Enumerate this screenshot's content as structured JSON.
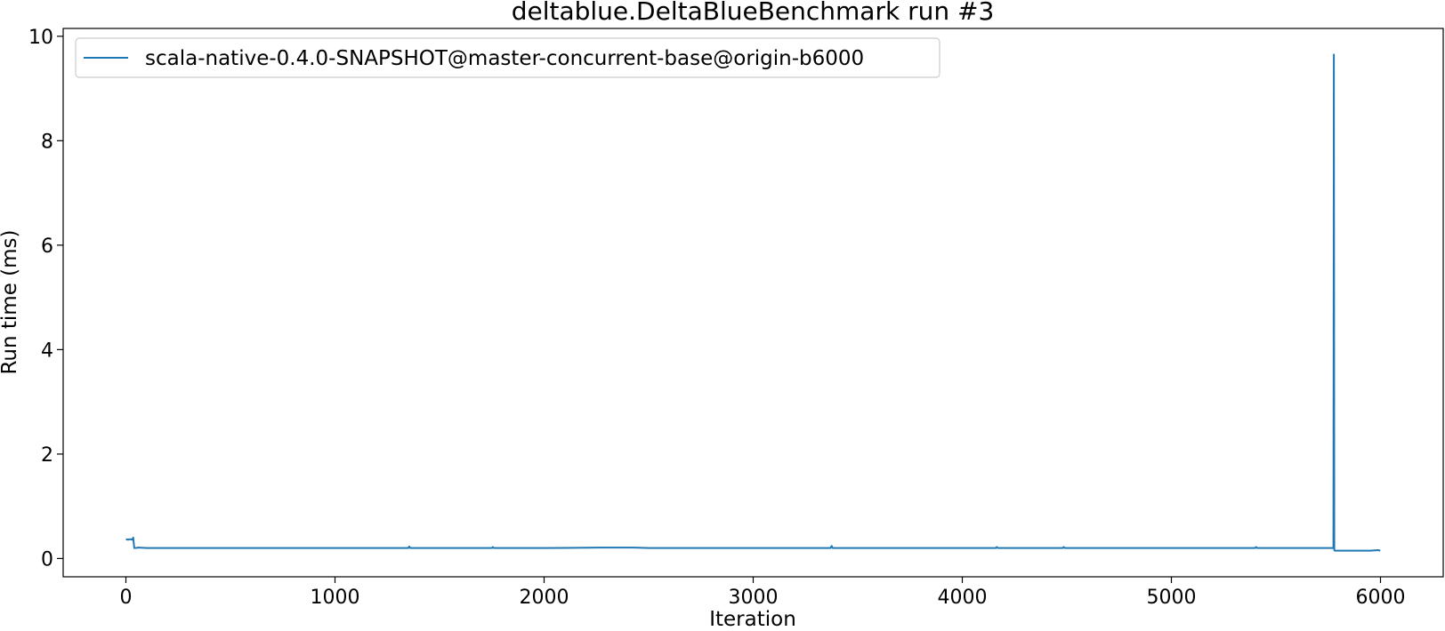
{
  "chart_data": {
    "type": "line",
    "title": "deltablue.DeltaBlueBenchmark run #3",
    "xlabel": "Iteration",
    "ylabel": "Run time (ms)",
    "xlim": [
      -300,
      6300
    ],
    "ylim": [
      -0.35,
      10.15
    ],
    "xticks": [
      0,
      1000,
      2000,
      3000,
      4000,
      5000,
      6000
    ],
    "yticks": [
      0,
      2,
      4,
      6,
      8,
      10
    ],
    "grid": false,
    "legend_position": "top-left",
    "series": [
      {
        "name": "scala-native-0.4.0-SNAPSHOT@master-concurrent-base@origin-b6000",
        "color": "#1f77b4",
        "x": [
          0,
          10,
          20,
          30,
          35,
          40,
          45,
          60,
          100,
          200,
          500,
          1000,
          1350,
          1355,
          1360,
          1500,
          1750,
          1755,
          1760,
          2000,
          2270,
          2430,
          2500,
          3000,
          3370,
          3375,
          3380,
          3500,
          4000,
          4160,
          4165,
          4170,
          4480,
          4485,
          4490,
          4500,
          5000,
          5400,
          5405,
          5410,
          5500,
          5700,
          5770,
          5775,
          5777,
          5779,
          5781,
          5790,
          5800,
          5900,
          5950,
          5990,
          5999
        ],
        "y": [
          0.37,
          0.36,
          0.37,
          0.36,
          0.4,
          0.2,
          0.2,
          0.21,
          0.2,
          0.2,
          0.2,
          0.2,
          0.2,
          0.23,
          0.2,
          0.2,
          0.2,
          0.22,
          0.2,
          0.2,
          0.21,
          0.21,
          0.2,
          0.2,
          0.2,
          0.24,
          0.2,
          0.2,
          0.2,
          0.2,
          0.22,
          0.2,
          0.2,
          0.22,
          0.2,
          0.2,
          0.2,
          0.2,
          0.22,
          0.2,
          0.2,
          0.2,
          0.2,
          0.2,
          9.65,
          0.16,
          0.15,
          0.15,
          0.15,
          0.15,
          0.15,
          0.16,
          0.15
        ]
      }
    ]
  }
}
